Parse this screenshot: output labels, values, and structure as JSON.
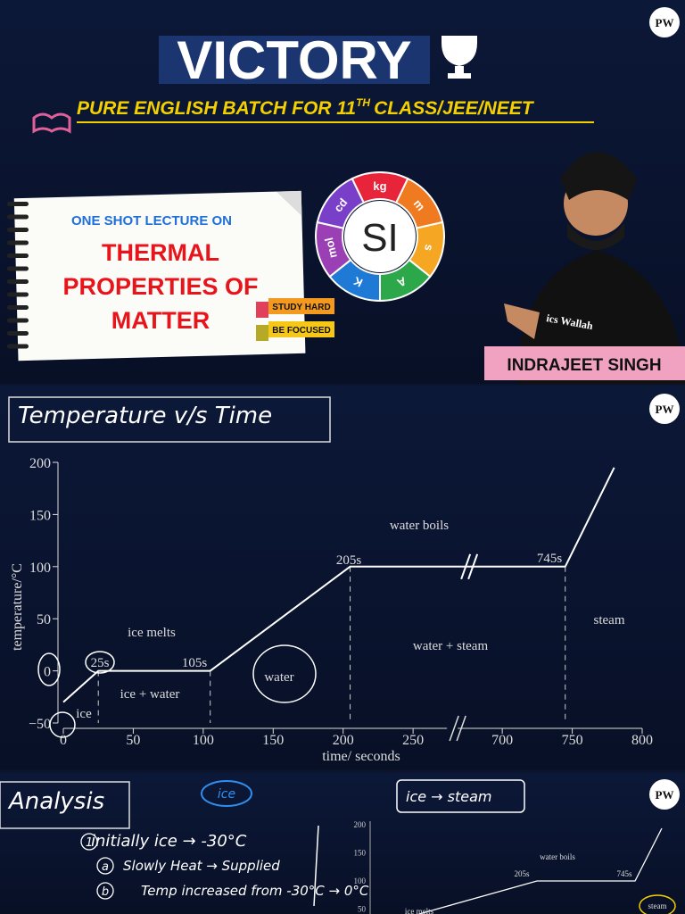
{
  "header": {
    "logo": "PW",
    "title": "VICTORY",
    "batch": "PURE ENGLISH BATCH FOR 11",
    "batch_sup": "TH",
    "batch_end": "CLASS/JEE/NEET",
    "lecture": "ONE SHOT LECTURE ON",
    "topic": [
      "THERMAL",
      "PROPERTIES OF",
      "MATTER"
    ],
    "tags": [
      "STUDY HARD",
      "BE FOCUSED"
    ],
    "si_center": "SI",
    "si_units": [
      "kg",
      "m",
      "s",
      "A",
      "K",
      "mol",
      "cd"
    ],
    "shirt": "ics Wallah",
    "teacher": "INDRAJEET SINGH"
  },
  "chart_data": {
    "type": "line",
    "title": "Temperature v/s Time",
    "logo": "PW",
    "x": [
      0,
      25,
      105,
      205,
      745,
      780
    ],
    "values": [
      -30,
      0,
      0,
      100,
      100,
      195
    ],
    "color": "#ffffff",
    "xlabel": "time/ seconds",
    "ylabel": "temperature/°C",
    "xlim": [
      0,
      800
    ],
    "ylim": [
      -50,
      200
    ],
    "xticks": [
      0,
      50,
      100,
      150,
      200,
      250,
      700,
      750,
      800
    ],
    "yticks": [
      {
        "value": -50,
        "label": "−50"
      },
      0,
      50,
      100,
      150,
      200
    ],
    "annotations": [
      "water boils",
      "205s",
      "745s",
      "ice melts",
      "25s",
      "105s",
      "ice + water",
      "ice",
      "water",
      "water + steam",
      "steam"
    ]
  },
  "analysis": {
    "title": "Analysis",
    "logo": "PW",
    "ice_note": "ice",
    "flow": "ice → steam",
    "note_marks": [
      "1",
      "a",
      "b"
    ],
    "notes": [
      "initially ice → -30°C",
      "Slowly Heat → Supplied",
      "Temp increased from -30°C → 0°C"
    ],
    "mini_yticks": [
      "200",
      "150",
      "100",
      "50"
    ],
    "mini_labels": [
      "water boils",
      "205s",
      "745s",
      "steam",
      "ice melts"
    ]
  }
}
